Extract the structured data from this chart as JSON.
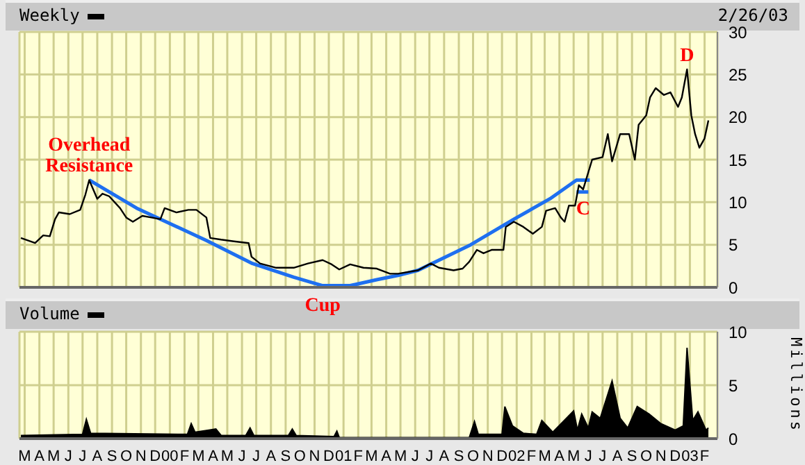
{
  "chart_data": [
    {
      "type": "line",
      "title": "Weekly",
      "tick_labels": "y",
      "grid": true,
      "xlim": [
        "1999-02-18",
        "2003-02-28"
      ],
      "ylim": [
        0,
        30
      ],
      "yticks": [
        0,
        5,
        10,
        15,
        20,
        25,
        30
      ],
      "xticks": [
        {
          "value": "1999-03-01",
          "label": null
        },
        {
          "value": "1999-04-01",
          "label": null
        },
        {
          "value": "1999-05-01",
          "label": null
        },
        {
          "value": "1999-06-01",
          "label": null
        },
        {
          "value": "1999-07-01",
          "label": null
        },
        {
          "value": "1999-08-01",
          "label": null
        },
        {
          "value": "1999-09-01",
          "label": null
        },
        {
          "value": "1999-10-01",
          "label": null
        },
        {
          "value": "1999-11-01",
          "label": null
        },
        {
          "value": "1999-12-01",
          "label": null
        },
        {
          "value": "2000-01-01",
          "label": null
        },
        {
          "value": "2000-02-01",
          "label": null
        },
        {
          "value": "2000-03-01",
          "label": null
        },
        {
          "value": "2000-04-01",
          "label": null
        },
        {
          "value": "2000-05-01",
          "label": null
        },
        {
          "value": "2000-06-01",
          "label": null
        },
        {
          "value": "2000-07-01",
          "label": null
        },
        {
          "value": "2000-08-01",
          "label": null
        },
        {
          "value": "2000-09-01",
          "label": null
        },
        {
          "value": "2000-10-01",
          "label": null
        },
        {
          "value": "2000-11-01",
          "label": null
        },
        {
          "value": "2000-12-01",
          "label": null
        },
        {
          "value": "2001-01-01",
          "label": null
        },
        {
          "value": "2001-02-01",
          "label": null
        },
        {
          "value": "2001-03-01",
          "label": null
        },
        {
          "value": "2001-04-01",
          "label": null
        },
        {
          "value": "2001-05-01",
          "label": null
        },
        {
          "value": "2001-06-01",
          "label": null
        },
        {
          "value": "2001-07-01",
          "label": null
        },
        {
          "value": "2001-08-01",
          "label": null
        },
        {
          "value": "2001-09-01",
          "label": null
        },
        {
          "value": "2001-10-01",
          "label": null
        },
        {
          "value": "2001-11-01",
          "label": null
        },
        {
          "value": "2001-12-01",
          "label": null
        },
        {
          "value": "2002-01-01",
          "label": null
        },
        {
          "value": "2002-02-01",
          "label": null
        },
        {
          "value": "2002-03-01",
          "label": null
        },
        {
          "value": "2002-04-01",
          "label": null
        },
        {
          "value": "2002-05-01",
          "label": null
        },
        {
          "value": "2002-06-01",
          "label": null
        },
        {
          "value": "2002-07-01",
          "label": null
        },
        {
          "value": "2002-08-01",
          "label": null
        },
        {
          "value": "2002-09-01",
          "label": null
        },
        {
          "value": "2002-10-01",
          "label": null
        },
        {
          "value": "2002-11-01",
          "label": null
        },
        {
          "value": "2002-12-01",
          "label": null
        },
        {
          "value": "2003-01-01",
          "label": null
        },
        {
          "value": "2003-02-01",
          "label": null
        }
      ],
      "annotations": [
        "2/26/03",
        {
          "text": "Overhead Resistance",
          "x": "1999-07-15",
          "y": 12.6
        },
        {
          "text": "Cup",
          "x": "2000-11-18",
          "y": 0.2
        },
        {
          "text": "C",
          "x": "2002-05-21",
          "y": 11.5
        },
        {
          "text": "D",
          "x": "2002-12-26",
          "y": 25.6
        }
      ],
      "x": [
        "1999-02-21",
        "1999-03-23",
        "1999-04-09",
        "1999-04-23",
        "1999-05-04",
        "1999-05-12",
        "1999-06-04",
        "1999-06-26",
        "1999-07-07",
        "1999-07-15",
        "1999-08-01",
        "1999-08-12",
        "1999-08-26",
        "1999-09-18",
        "1999-10-01",
        "1999-10-15",
        "1999-11-04",
        "1999-11-23",
        "1999-12-12",
        "1999-12-21",
        "2000-01-15",
        "2000-02-09",
        "2000-02-26",
        "2000-03-18",
        "2000-03-26",
        "2000-04-18",
        "2000-05-15",
        "2000-06-15",
        "2000-06-21",
        "2000-07-09",
        "2000-08-12",
        "2000-09-18",
        "2000-10-18",
        "2000-11-18",
        "2000-12-07",
        "2000-12-23",
        "2001-01-15",
        "2001-02-12",
        "2001-03-12",
        "2001-04-09",
        "2001-04-26",
        "2001-06-07",
        "2001-07-04",
        "2001-07-21",
        "2001-08-21",
        "2001-09-09",
        "2001-09-23",
        "2001-10-09",
        "2001-10-23",
        "2001-11-09",
        "2001-12-04",
        "2001-12-09",
        "2001-12-26",
        "2002-01-15",
        "2002-02-04",
        "2002-02-23",
        "2002-03-04",
        "2002-03-23",
        "2002-04-04",
        "2002-04-12",
        "2002-04-21",
        "2002-05-04",
        "2002-05-12",
        "2002-05-21",
        "2002-06-09",
        "2002-07-01",
        "2002-07-12",
        "2002-07-21",
        "2002-08-07",
        "2002-08-26",
        "2002-09-07",
        "2002-09-15",
        "2002-10-01",
        "2002-10-09",
        "2002-10-21",
        "2002-11-07",
        "2002-11-21",
        "2002-12-07",
        "2002-12-15",
        "2002-12-26",
        "2003-01-04",
        "2003-01-12",
        "2003-01-21",
        "2003-02-01",
        "2003-02-09"
      ],
      "series": [
        {
          "color": "#000000",
          "values": [
            5.8,
            5.2,
            6.1,
            6.0,
            8.0,
            8.8,
            8.6,
            9.1,
            10.9,
            12.6,
            10.4,
            11.0,
            10.7,
            9.3,
            8.2,
            7.7,
            8.4,
            8.2,
            8.0,
            9.3,
            8.8,
            9.1,
            9.1,
            8.2,
            5.8,
            5.6,
            5.4,
            5.2,
            3.6,
            2.8,
            2.3,
            2.3,
            2.8,
            3.2,
            2.7,
            2.1,
            2.7,
            2.3,
            2.2,
            1.6,
            1.6,
            2.0,
            2.8,
            2.3,
            2.0,
            2.2,
            3.0,
            4.4,
            4.0,
            4.4,
            4.4,
            7.1,
            7.7,
            7.1,
            6.3,
            7.1,
            9.0,
            9.3,
            8.2,
            7.7,
            9.6,
            9.6,
            12.0,
            11.5,
            15.0,
            15.3,
            18.0,
            14.8,
            18.0,
            18.0,
            15.0,
            19.1,
            20.2,
            22.3,
            23.4,
            22.6,
            22.9,
            21.2,
            22.3,
            25.6,
            20.2,
            18.0,
            16.4,
            17.5,
            19.6
          ]
        },
        {
          "type": "line",
          "color": "#1e6ff0",
          "x": [
            "1999-07-15",
            "1999-10-23",
            "2000-03-18",
            "2000-06-23",
            "2000-09-18",
            "2000-11-18",
            "2001-01-15",
            "2001-03-12",
            "2001-04-26",
            "2001-06-07",
            "2001-09-26",
            "2001-12-26",
            "2002-03-12",
            "2002-05-07",
            "2002-06-04"
          ],
          "values": [
            12.6,
            9.3,
            5.5,
            2.8,
            1.2,
            0.2,
            0.2,
            0.9,
            1.4,
            2.0,
            5.0,
            8.0,
            10.4,
            12.6,
            12.6
          ]
        },
        {
          "type": "line",
          "color": "#1e6ff0",
          "x": [
            "2002-05-07",
            "2002-06-01"
          ],
          "values": [
            11.2,
            11.2
          ]
        }
      ]
    },
    {
      "type": "area",
      "title": "Volume",
      "ylabel": "Millions",
      "grid": true,
      "xlim": [
        "1999-02-18",
        "2003-02-28"
      ],
      "ylim": [
        0,
        10
      ],
      "yticks": [
        0,
        5,
        10
      ],
      "xticks": [
        {
          "value": "1999-03-01",
          "label": "M"
        },
        {
          "value": "1999-04-01",
          "label": "A"
        },
        {
          "value": "1999-05-01",
          "label": "M"
        },
        {
          "value": "1999-06-01",
          "label": "J"
        },
        {
          "value": "1999-07-01",
          "label": "J"
        },
        {
          "value": "1999-08-01",
          "label": "A"
        },
        {
          "value": "1999-09-01",
          "label": "S"
        },
        {
          "value": "1999-10-01",
          "label": "O"
        },
        {
          "value": "1999-11-01",
          "label": "N"
        },
        {
          "value": "1999-12-01",
          "label": "D"
        },
        {
          "value": "2000-01-01",
          "label": "00"
        },
        {
          "value": "2000-02-01",
          "label": "F"
        },
        {
          "value": "2000-03-01",
          "label": "M"
        },
        {
          "value": "2000-04-01",
          "label": "A"
        },
        {
          "value": "2000-05-01",
          "label": "M"
        },
        {
          "value": "2000-06-01",
          "label": "J"
        },
        {
          "value": "2000-07-01",
          "label": "J"
        },
        {
          "value": "2000-08-01",
          "label": "A"
        },
        {
          "value": "2000-09-01",
          "label": "S"
        },
        {
          "value": "2000-10-01",
          "label": "O"
        },
        {
          "value": "2000-11-01",
          "label": "N"
        },
        {
          "value": "2000-12-01",
          "label": "D"
        },
        {
          "value": "2001-01-01",
          "label": "01"
        },
        {
          "value": "2001-02-01",
          "label": "F"
        },
        {
          "value": "2001-03-01",
          "label": "M"
        },
        {
          "value": "2001-04-01",
          "label": "A"
        },
        {
          "value": "2001-05-01",
          "label": "M"
        },
        {
          "value": "2001-06-01",
          "label": "J"
        },
        {
          "value": "2001-07-01",
          "label": "J"
        },
        {
          "value": "2001-08-01",
          "label": "A"
        },
        {
          "value": "2001-09-01",
          "label": "S"
        },
        {
          "value": "2001-10-01",
          "label": "O"
        },
        {
          "value": "2001-11-01",
          "label": "N"
        },
        {
          "value": "2001-12-01",
          "label": "D"
        },
        {
          "value": "2002-01-01",
          "label": "02"
        },
        {
          "value": "2002-02-01",
          "label": "F"
        },
        {
          "value": "2002-03-01",
          "label": "M"
        },
        {
          "value": "2002-04-01",
          "label": "A"
        },
        {
          "value": "2002-05-01",
          "label": "M"
        },
        {
          "value": "2002-06-01",
          "label": "J"
        },
        {
          "value": "2002-07-01",
          "label": "J"
        },
        {
          "value": "2002-08-01",
          "label": "A"
        },
        {
          "value": "2002-09-01",
          "label": "S"
        },
        {
          "value": "2002-10-01",
          "label": "O"
        },
        {
          "value": "2002-11-01",
          "label": "N"
        },
        {
          "value": "2002-12-01",
          "label": "D"
        },
        {
          "value": "2003-01-01",
          "label": "03"
        },
        {
          "value": "2003-02-01",
          "label": "F"
        }
      ],
      "x": [
        "1999-02-21",
        "1999-07-01",
        "1999-07-09",
        "1999-07-18",
        "2000-02-07",
        "2000-02-15",
        "2000-02-23",
        "2000-03-23",
        "2000-04-07",
        "2000-04-18",
        "2000-06-09",
        "2000-06-18",
        "2000-06-26",
        "2000-09-07",
        "2000-09-15",
        "2000-09-23",
        "2000-12-12",
        "2000-12-18",
        "2000-12-23",
        "2001-09-23",
        "2001-10-04",
        "2001-10-12",
        "2001-12-01",
        "2001-12-07",
        "2001-12-23",
        "2002-01-15",
        "2002-02-12",
        "2002-02-23",
        "2002-03-18",
        "2002-05-01",
        "2002-05-09",
        "2002-05-18",
        "2002-06-01",
        "2002-06-09",
        "2002-06-26",
        "2002-07-21",
        "2002-08-07",
        "2002-08-23",
        "2002-09-12",
        "2002-10-07",
        "2002-11-01",
        "2002-12-01",
        "2002-12-18",
        "2002-12-26",
        "2003-01-07",
        "2003-01-18",
        "2003-02-04",
        "2003-02-09"
      ],
      "series": [
        {
          "color": "#000000",
          "values": [
            0.3,
            0.4,
            1.8,
            0.5,
            0.4,
            1.4,
            0.6,
            0.8,
            0.9,
            0.3,
            0.3,
            1.0,
            0.3,
            0.3,
            0.9,
            0.3,
            0.2,
            0.7,
            0.1,
            0.1,
            1.6,
            0.4,
            0.4,
            3.0,
            1.2,
            0.5,
            0.4,
            1.7,
            0.6,
            2.6,
            0.8,
            2.3,
            1.0,
            2.5,
            1.9,
            5.4,
            1.9,
            1.0,
            3.0,
            2.3,
            1.4,
            0.8,
            1.2,
            8.5,
            1.7,
            2.5,
            0.8,
            1.0
          ]
        }
      ]
    }
  ]
}
